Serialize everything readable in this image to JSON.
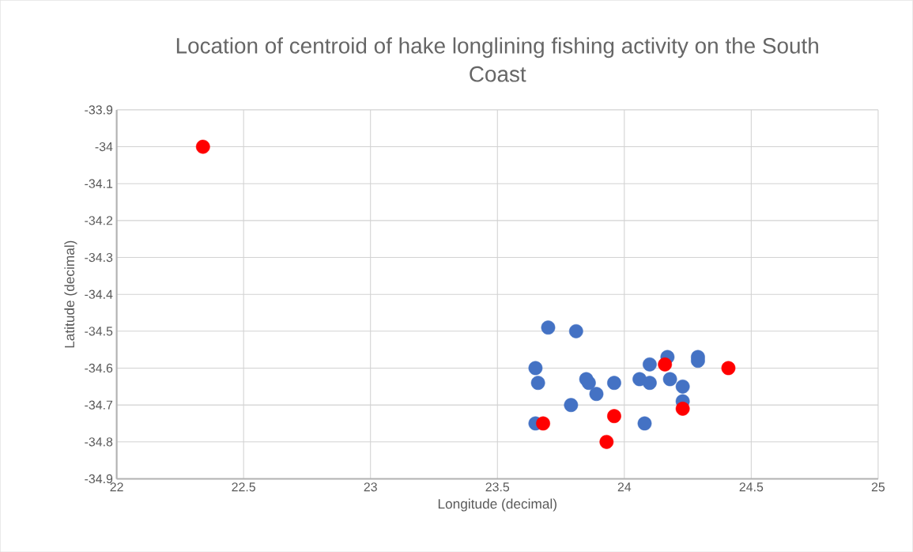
{
  "chart_data": {
    "type": "scatter",
    "title": "Location of centroid of hake longlining fishing activity on the South Coast",
    "xlabel": "Longitude (decimal)",
    "ylabel": "Latitude (decimal)",
    "xlim": [
      22,
      25
    ],
    "xticks": [
      22,
      22.5,
      23,
      23.5,
      24,
      24.5,
      25
    ],
    "ylim": [
      -34.9,
      -33.9
    ],
    "yticks": [
      -34.9,
      -34.8,
      -34.7,
      -34.6,
      -34.5,
      -34.4,
      -34.3,
      -34.2,
      -34.1,
      -34,
      -33.9
    ],
    "grid": true,
    "series": [
      {
        "color": "#4472c4",
        "x": [
          23.7,
          23.81,
          23.65,
          23.66,
          23.85,
          23.86,
          23.89,
          23.96,
          23.79,
          23.65,
          24.06,
          24.1,
          24.1,
          24.17,
          24.18,
          24.23,
          24.23,
          24.29,
          24.29,
          24.08
        ],
        "values": [
          -34.49,
          -34.5,
          -34.6,
          -34.64,
          -34.63,
          -34.64,
          -34.67,
          -34.64,
          -34.7,
          -34.75,
          -34.63,
          -34.59,
          -34.64,
          -34.57,
          -34.63,
          -34.65,
          -34.69,
          -34.57,
          -34.58,
          -34.75
        ]
      },
      {
        "color": "#ff0000",
        "x": [
          22.34,
          23.68,
          23.96,
          23.93,
          24.16,
          24.23,
          24.41
        ],
        "values": [
          -34.0,
          -34.75,
          -34.73,
          -34.8,
          -34.59,
          -34.71,
          -34.6
        ]
      }
    ]
  }
}
